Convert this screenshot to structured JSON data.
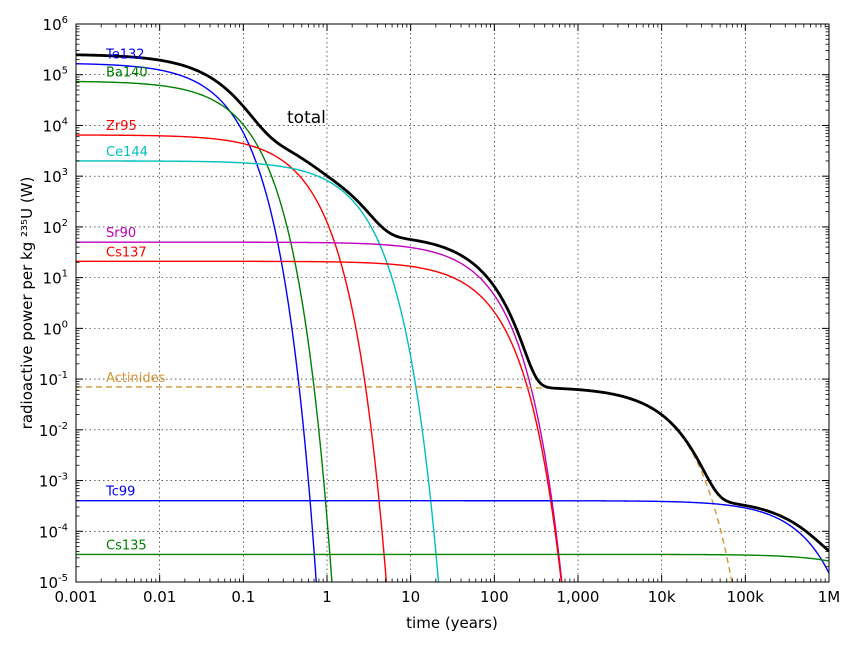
{
  "chart_data": {
    "type": "line",
    "xlabel": "time (years)",
    "ylabel": "radioactive power per kg ²³⁵U (W)",
    "x_scale": "log",
    "y_scale": "log",
    "xlim": [
      0.001,
      1000000
    ],
    "ylim": [
      1e-05,
      1000000
    ],
    "grid": true,
    "x_ticks": [
      {
        "value": 0.001,
        "label": "0.001"
      },
      {
        "value": 0.01,
        "label": "0.01"
      },
      {
        "value": 0.1,
        "label": "0.1"
      },
      {
        "value": 1,
        "label": "1"
      },
      {
        "value": 10,
        "label": "10"
      },
      {
        "value": 100,
        "label": "100"
      },
      {
        "value": 1000,
        "label": "1,000"
      },
      {
        "value": 10000,
        "label": "10k"
      },
      {
        "value": 100000,
        "label": "100k"
      },
      {
        "value": 1000000,
        "label": "1M"
      }
    ],
    "y_ticks": [
      {
        "value": 1e-05,
        "base": "10",
        "exp": "-5"
      },
      {
        "value": 0.0001,
        "base": "10",
        "exp": "-4"
      },
      {
        "value": 0.001,
        "base": "10",
        "exp": "-3"
      },
      {
        "value": 0.01,
        "base": "10",
        "exp": "-2"
      },
      {
        "value": 0.1,
        "base": "10",
        "exp": "-1"
      },
      {
        "value": 1,
        "base": "10",
        "exp": "0"
      },
      {
        "value": 10,
        "base": "10",
        "exp": "1"
      },
      {
        "value": 100,
        "base": "10",
        "exp": "2"
      },
      {
        "value": 1000,
        "base": "10",
        "exp": "3"
      },
      {
        "value": 10000,
        "base": "10",
        "exp": "4"
      },
      {
        "value": 100000,
        "base": "10",
        "exp": "5"
      },
      {
        "value": 1000000,
        "base": "10",
        "exp": "6"
      }
    ],
    "series": [
      {
        "name": "Te132",
        "color": "#0000ff",
        "initial_power": 170000,
        "half_life_years": 0.0219,
        "dash": false
      },
      {
        "name": "Ba140",
        "color": "#008000",
        "initial_power": 75000,
        "half_life_years": 0.0349,
        "dash": false
      },
      {
        "name": "Zr95",
        "color": "#ff0000",
        "initial_power": 6500,
        "half_life_years": 0.175,
        "dash": false
      },
      {
        "name": "Ce144",
        "color": "#00bfbf",
        "initial_power": 2000,
        "half_life_years": 0.78,
        "dash": false
      },
      {
        "name": "Sr90",
        "color": "#bf00bf",
        "initial_power": 50,
        "half_life_years": 28.8,
        "dash": false
      },
      {
        "name": "Cs137",
        "color": "#ff0000",
        "initial_power": 21,
        "half_life_years": 30.1,
        "dash": false
      },
      {
        "name": "Actinides",
        "color": "#d59536",
        "initial_power": 0.07,
        "half_life_years": 5400,
        "dash": true
      },
      {
        "name": "Tc99",
        "color": "#0000ff",
        "initial_power": 0.0004,
        "half_life_years": 211000,
        "dash": false
      },
      {
        "name": "Cs135",
        "color": "#008000",
        "initial_power": 3.5e-05,
        "half_life_years": 2300000,
        "dash": false
      }
    ],
    "total": {
      "name": "total",
      "color": "#000000"
    }
  }
}
